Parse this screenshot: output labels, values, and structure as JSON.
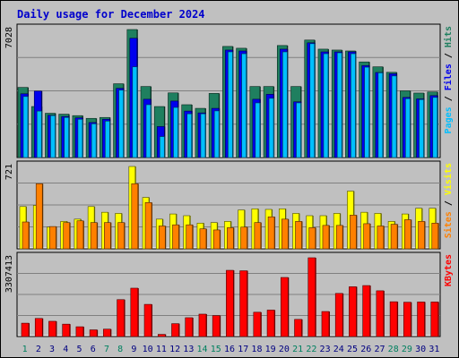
{
  "chart_data": {
    "type": "bar",
    "title": "Daily usage for December 2024",
    "categories": [
      "1",
      "2",
      "3",
      "4",
      "5",
      "6",
      "7",
      "8",
      "9",
      "10",
      "11",
      "12",
      "13",
      "14",
      "15",
      "16",
      "17",
      "18",
      "19",
      "20",
      "21",
      "22",
      "23",
      "24",
      "25",
      "26",
      "27",
      "28",
      "29",
      "30",
      "31"
    ],
    "weekend_days": [
      "1",
      "7",
      "8",
      "14",
      "15",
      "21",
      "22",
      "28",
      "29"
    ],
    "panels": [
      {
        "id": "pages-files-hits",
        "max_label": "7028",
        "ymax": 7028,
        "legend": [
          "Pages",
          " / ",
          "Files",
          " / ",
          "Hits"
        ],
        "series": [
          {
            "name": "Hits",
            "color": "#1f7f5f",
            "values": [
              3850,
              2800,
              2430,
              2380,
              2300,
              2150,
              2200,
              4050,
              7028,
              3900,
              2800,
              3550,
              2900,
              2700,
              3520,
              6100,
              6000,
              3900,
              3900,
              6150,
              3900,
              6450,
              5950,
              5900,
              5850,
              5250,
              4980,
              4680,
              3660,
              3540,
              3600
            ]
          },
          {
            "name": "Files",
            "color": "#0000ee",
            "values": [
              3500,
              3650,
              2320,
              2250,
              2180,
              1920,
              2100,
              3800,
              6550,
              3200,
              1700,
              3100,
              2550,
              2450,
              2700,
              5900,
              5850,
              3200,
              3470,
              5950,
              3060,
              6300,
              5800,
              5800,
              5800,
              5050,
              4670,
              4600,
              3300,
              3220,
              3400
            ]
          },
          {
            "name": "Pages",
            "color": "#00bfff",
            "values": [
              3350,
              2550,
              2300,
              2200,
              2100,
              1850,
              2000,
              3700,
              4980,
              2900,
              1150,
              2750,
              2400,
              2400,
              2560,
              5800,
              5700,
              3000,
              3250,
              5800,
              3000,
              6250,
              5700,
              5750,
              5700,
              4960,
              4650,
              4480,
              3230,
              3180,
              3300
            ]
          }
        ]
      },
      {
        "id": "sites-visits",
        "max_label": "721",
        "ymax": 721,
        "legend": [
          "Sites",
          " / ",
          "Visits"
        ],
        "series": [
          {
            "name": "Visits",
            "color": "#ffff00",
            "values": [
              370,
              380,
              190,
              240,
              260,
              370,
              320,
              310,
              721,
              450,
              260,
              305,
              290,
              225,
              230,
              240,
              340,
              350,
              345,
              350,
              310,
              290,
              290,
              310,
              505,
              320,
              310,
              240,
              305,
              355,
              355
            ]
          },
          {
            "name": "Sites",
            "color": "#ff8000",
            "values": [
              235,
              570,
              195,
              230,
              245,
              230,
              230,
              230,
              570,
              405,
              200,
              210,
              210,
              175,
              165,
              185,
              190,
              230,
              280,
              260,
              240,
              185,
              205,
              205,
              295,
              220,
              200,
              215,
              255,
              240,
              225
            ]
          }
        ]
      },
      {
        "id": "kbytes",
        "max_label": "3307413",
        "ymax": 3307413,
        "legend": [
          "KBytes"
        ],
        "series": [
          {
            "name": "KBytes",
            "color": "#ff0000",
            "values": [
              560000,
              760000,
              640000,
              520000,
              410000,
              280000,
              310000,
              1550000,
              2030000,
              1350000,
              90000,
              540000,
              790000,
              940000,
              880000,
              2780000,
              2760000,
              1020000,
              1110000,
              2480000,
              720000,
              3307413,
              1050000,
              1810000,
              2090000,
              2140000,
              1920000,
              1460000,
              1440000,
              1450000,
              1450000
            ]
          }
        ]
      }
    ]
  }
}
